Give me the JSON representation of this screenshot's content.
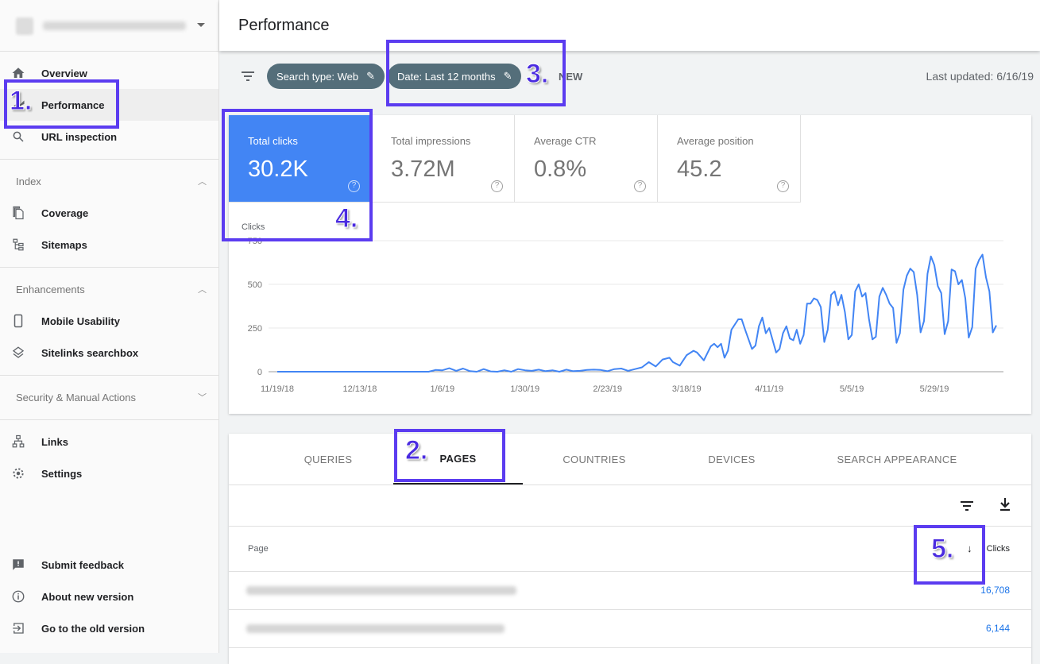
{
  "header": {
    "title": "Performance"
  },
  "sidebar": {
    "items": [
      {
        "label": "Overview",
        "icon": "home-icon"
      },
      {
        "label": "Performance",
        "icon": "performance-icon",
        "active": true
      },
      {
        "label": "URL inspection",
        "icon": "search-icon"
      },
      {
        "label": "Coverage",
        "icon": "coverage-icon"
      },
      {
        "label": "Sitemaps",
        "icon": "sitemap-icon"
      },
      {
        "label": "Mobile Usability",
        "icon": "phone-icon"
      },
      {
        "label": "Sitelinks searchbox",
        "icon": "layers-icon"
      },
      {
        "label": "Links",
        "icon": "links-icon"
      },
      {
        "label": "Settings",
        "icon": "gear-icon"
      },
      {
        "label": "Submit feedback",
        "icon": "feedback-icon"
      },
      {
        "label": "About new version",
        "icon": "info-icon"
      },
      {
        "label": "Go to the old version",
        "icon": "exit-icon"
      }
    ],
    "sections": [
      "Index",
      "Enhancements",
      "Security & Manual Actions"
    ]
  },
  "filters": {
    "search_type": "Search type: Web",
    "date": "Date: Last 12 months",
    "new_label": "NEW",
    "last_updated": "Last updated: 6/16/19"
  },
  "metrics": [
    {
      "label": "Total clicks",
      "value": "30.2K",
      "selected": true
    },
    {
      "label": "Total impressions",
      "value": "3.72M"
    },
    {
      "label": "Average CTR",
      "value": "0.8%"
    },
    {
      "label": "Average position",
      "value": "45.2"
    }
  ],
  "accent_color": "#4285f4",
  "annotation_color": "#5b3cf0",
  "chart_data": {
    "type": "line",
    "ylabel": "Clicks",
    "ylim": [
      0,
      750
    ],
    "yticks": [
      "0",
      "250",
      "500",
      "750"
    ],
    "xticks": [
      "11/19/18",
      "12/13/18",
      "1/6/19",
      "1/30/19",
      "2/23/19",
      "3/18/19",
      "4/11/19",
      "5/5/19",
      "5/29/19"
    ],
    "grid": true,
    "series": [
      {
        "color": "#4285f4",
        "points": [
          [
            "11/19/18",
            0
          ],
          [
            "1/2/19",
            0
          ],
          [
            "1/4/19",
            10
          ],
          [
            "1/6/19",
            8
          ],
          [
            "1/8/19",
            20
          ],
          [
            "1/10/19",
            5
          ],
          [
            "1/12/19",
            18
          ],
          [
            "1/14/19",
            3
          ],
          [
            "1/16/19",
            0
          ],
          [
            "1/18/19",
            15
          ],
          [
            "1/20/19",
            2
          ],
          [
            "1/22/19",
            0
          ],
          [
            "1/24/19",
            8
          ],
          [
            "1/26/19",
            0
          ],
          [
            "1/28/19",
            15
          ],
          [
            "1/30/19",
            8
          ],
          [
            "2/1/19",
            5
          ],
          [
            "2/3/19",
            12
          ],
          [
            "2/5/19",
            3
          ],
          [
            "2/7/19",
            8
          ],
          [
            "2/9/19",
            0
          ],
          [
            "2/11/19",
            12
          ],
          [
            "2/13/19",
            3
          ],
          [
            "2/15/19",
            5
          ],
          [
            "2/17/19",
            10
          ],
          [
            "2/19/19",
            12
          ],
          [
            "2/21/19",
            10
          ],
          [
            "2/23/19",
            3
          ],
          [
            "2/25/19",
            15
          ],
          [
            "2/27/19",
            18
          ],
          [
            "3/1/19",
            5
          ],
          [
            "3/3/19",
            15
          ],
          [
            "3/5/19",
            25
          ],
          [
            "3/7/19",
            55
          ],
          [
            "3/9/19",
            30
          ],
          [
            "3/11/19",
            70
          ],
          [
            "3/13/19",
            80
          ],
          [
            "3/14/19",
            55
          ],
          [
            "3/16/19",
            35
          ],
          [
            "3/18/19",
            95
          ],
          [
            "3/20/19",
            120
          ],
          [
            "3/21/19",
            110
          ],
          [
            "3/23/19",
            65
          ],
          [
            "3/25/19",
            145
          ],
          [
            "3/26/19",
            160
          ],
          [
            "3/27/19",
            140
          ],
          [
            "3/28/19",
            160
          ],
          [
            "3/29/19",
            80
          ],
          [
            "3/30/19",
            120
          ],
          [
            "3/31/19",
            240
          ],
          [
            "4/2/19",
            300
          ],
          [
            "4/3/19",
            300
          ],
          [
            "4/4/19",
            240
          ],
          [
            "4/6/19",
            130
          ],
          [
            "4/7/19",
            150
          ],
          [
            "4/8/19",
            260
          ],
          [
            "4/9/19",
            310
          ],
          [
            "4/10/19",
            220
          ],
          [
            "4/11/19",
            250
          ],
          [
            "4/13/19",
            110
          ],
          [
            "4/14/19",
            130
          ],
          [
            "4/15/19",
            220
          ],
          [
            "4/16/19",
            260
          ],
          [
            "4/17/19",
            190
          ],
          [
            "4/18/19",
            180
          ],
          [
            "4/19/19",
            240
          ],
          [
            "4/20/19",
            160
          ],
          [
            "4/21/19",
            210
          ],
          [
            "4/22/19",
            390
          ],
          [
            "4/23/19",
            390
          ],
          [
            "4/24/19",
            420
          ],
          [
            "4/25/19",
            410
          ],
          [
            "4/26/19",
            370
          ],
          [
            "4/27/19",
            170
          ],
          [
            "4/28/19",
            240
          ],
          [
            "4/29/19",
            440
          ],
          [
            "4/30/19",
            460
          ],
          [
            "5/1/19",
            380
          ],
          [
            "5/2/19",
            440
          ],
          [
            "5/3/19",
            340
          ],
          [
            "5/4/19",
            185
          ],
          [
            "5/5/19",
            210
          ],
          [
            "5/6/19",
            460
          ],
          [
            "5/7/19",
            500
          ],
          [
            "5/8/19",
            430
          ],
          [
            "5/9/19",
            450
          ],
          [
            "5/10/19",
            300
          ],
          [
            "5/11/19",
            185
          ],
          [
            "5/12/19",
            200
          ],
          [
            "5/13/19",
            430
          ],
          [
            "5/14/19",
            480
          ],
          [
            "5/15/19",
            440
          ],
          [
            "5/16/19",
            390
          ],
          [
            "5/17/19",
            365
          ],
          [
            "5/18/19",
            165
          ],
          [
            "5/19/19",
            220
          ],
          [
            "5/20/19",
            470
          ],
          [
            "5/21/19",
            550
          ],
          [
            "5/22/19",
            590
          ],
          [
            "5/23/19",
            570
          ],
          [
            "5/24/19",
            440
          ],
          [
            "5/25/19",
            225
          ],
          [
            "5/26/19",
            290
          ],
          [
            "5/27/19",
            560
          ],
          [
            "5/28/19",
            660
          ],
          [
            "5/29/19",
            610
          ],
          [
            "5/30/19",
            490
          ],
          [
            "5/31/19",
            450
          ],
          [
            "6/1/19",
            215
          ],
          [
            "6/2/19",
            290
          ],
          [
            "6/3/19",
            585
          ],
          [
            "6/4/19",
            575
          ],
          [
            "6/5/19",
            500
          ],
          [
            "6/6/19",
            525
          ],
          [
            "6/7/19",
            420
          ],
          [
            "6/8/19",
            195
          ],
          [
            "6/9/19",
            255
          ],
          [
            "6/10/19",
            590
          ],
          [
            "6/11/19",
            640
          ],
          [
            "6/12/19",
            670
          ],
          [
            "6/13/19",
            540
          ],
          [
            "6/14/19",
            460
          ],
          [
            "6/15/19",
            225
          ],
          [
            "6/16/19",
            265
          ]
        ]
      }
    ]
  },
  "table": {
    "tabs": [
      "QUERIES",
      "PAGES",
      "COUNTRIES",
      "DEVICES",
      "SEARCH APPEARANCE"
    ],
    "active_tab": "PAGES",
    "columns": {
      "page": "Page",
      "clicks": "Clicks"
    },
    "sort": "descending",
    "rows": [
      {
        "clicks": "16,708"
      },
      {
        "clicks": "6,144"
      }
    ]
  },
  "annotations": [
    "1.",
    "2.",
    "3.",
    "4.",
    "5."
  ]
}
